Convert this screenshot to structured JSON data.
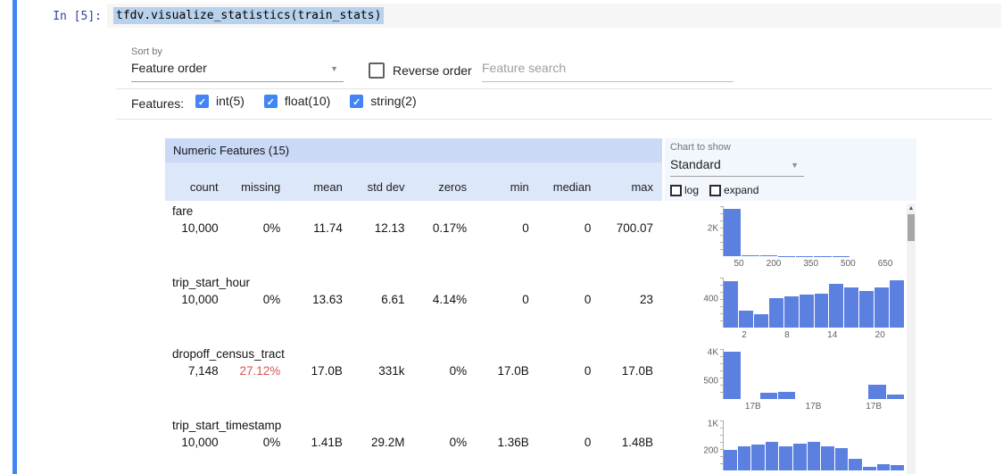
{
  "colors": {
    "accent_blue": "#4285f4",
    "bar_blue": "#5b80e0",
    "alert_red": "#d9534f",
    "header_blue": "#c9d9f6",
    "subheader_blue": "#dde7fa",
    "panel_blue": "#f2f6fd",
    "selection_blue": "#b8d1ec"
  },
  "icons": {
    "chevron_down": "▼",
    "scroll_up": "▲",
    "check": "✓"
  },
  "cell": {
    "prompt": "In [5]:",
    "code": "tfdv.visualize_statistics(train_stats)"
  },
  "controls": {
    "sort_by_label": "Sort by",
    "sort_by_value": "Feature order",
    "reverse_order_label": "Reverse order",
    "search_placeholder": "Feature search",
    "features_label": "Features:",
    "feature_filters": [
      {
        "label": "int(5)",
        "checked": true
      },
      {
        "label": "float(10)",
        "checked": true
      },
      {
        "label": "string(2)",
        "checked": true
      }
    ]
  },
  "chart_panel": {
    "label": "Chart to show",
    "selected": "Standard",
    "log_label": "log",
    "expand_label": "expand"
  },
  "table": {
    "title": "Numeric Features (15)",
    "columns": [
      "count",
      "missing",
      "mean",
      "std dev",
      "zeros",
      "min",
      "median",
      "max"
    ],
    "rows": [
      {
        "name": "fare",
        "values": [
          "10,000",
          "0%",
          "11.74",
          "12.13",
          "0.17%",
          "0",
          "0",
          "700.07"
        ],
        "missing_alert": false
      },
      {
        "name": "trip_start_hour",
        "values": [
          "10,000",
          "0%",
          "13.63",
          "6.61",
          "4.14%",
          "0",
          "0",
          "23"
        ],
        "missing_alert": false
      },
      {
        "name": "dropoff_census_tract",
        "values": [
          "7,148",
          "27.12%",
          "17.0B",
          "331k",
          "0%",
          "17.0B",
          "0",
          "17.0B"
        ],
        "missing_alert": true
      },
      {
        "name": "trip_start_timestamp",
        "values": [
          "10,000",
          "0%",
          "1.41B",
          "29.2M",
          "0%",
          "1.36B",
          "0",
          "1.48B"
        ],
        "missing_alert": false
      }
    ]
  },
  "chart_data": [
    {
      "type": "bar",
      "feature": "fare",
      "values": [
        2450,
        60,
        25,
        12,
        8,
        5,
        4,
        3,
        2,
        2
      ],
      "ymax": 2600,
      "x_ticks": [
        "50",
        "200",
        "350",
        "500",
        "650"
      ],
      "y_ticks": [
        {
          "label": "2K",
          "value": 2000,
          "pos": 0.55
        }
      ]
    },
    {
      "type": "bar",
      "feature": "trip_start_hour",
      "values": [
        640,
        230,
        190,
        410,
        430,
        450,
        470,
        600,
        560,
        500,
        560,
        650
      ],
      "ymax": 690,
      "x_ticks": [
        "2",
        "8",
        "14",
        "20"
      ],
      "y_ticks": [
        {
          "label": "400",
          "value": 400,
          "pos": 0.58
        }
      ]
    },
    {
      "type": "bar",
      "feature": "dropoff_census_tract",
      "values": [
        4300,
        0,
        600,
        650,
        0,
        0,
        0,
        0,
        1300,
        400
      ],
      "ymax": 4500,
      "x_ticks": [
        "17B",
        "17B",
        "17B"
      ],
      "y_ticks": [
        {
          "label": "4K",
          "value": 4000,
          "pos": 0.92
        },
        {
          "label": "500",
          "value": 500,
          "pos": 0.36
        }
      ]
    },
    {
      "type": "bar",
      "feature": "trip_start_timestamp",
      "values": [
        480,
        560,
        600,
        650,
        560,
        610,
        650,
        560,
        520,
        260,
        90,
        150,
        130
      ],
      "ymax": 1150,
      "x_ticks": [],
      "y_ticks": [
        {
          "label": "1K",
          "value": 1000,
          "pos": 0.92
        },
        {
          "label": "200",
          "value": 200,
          "pos": 0.4
        }
      ]
    }
  ]
}
